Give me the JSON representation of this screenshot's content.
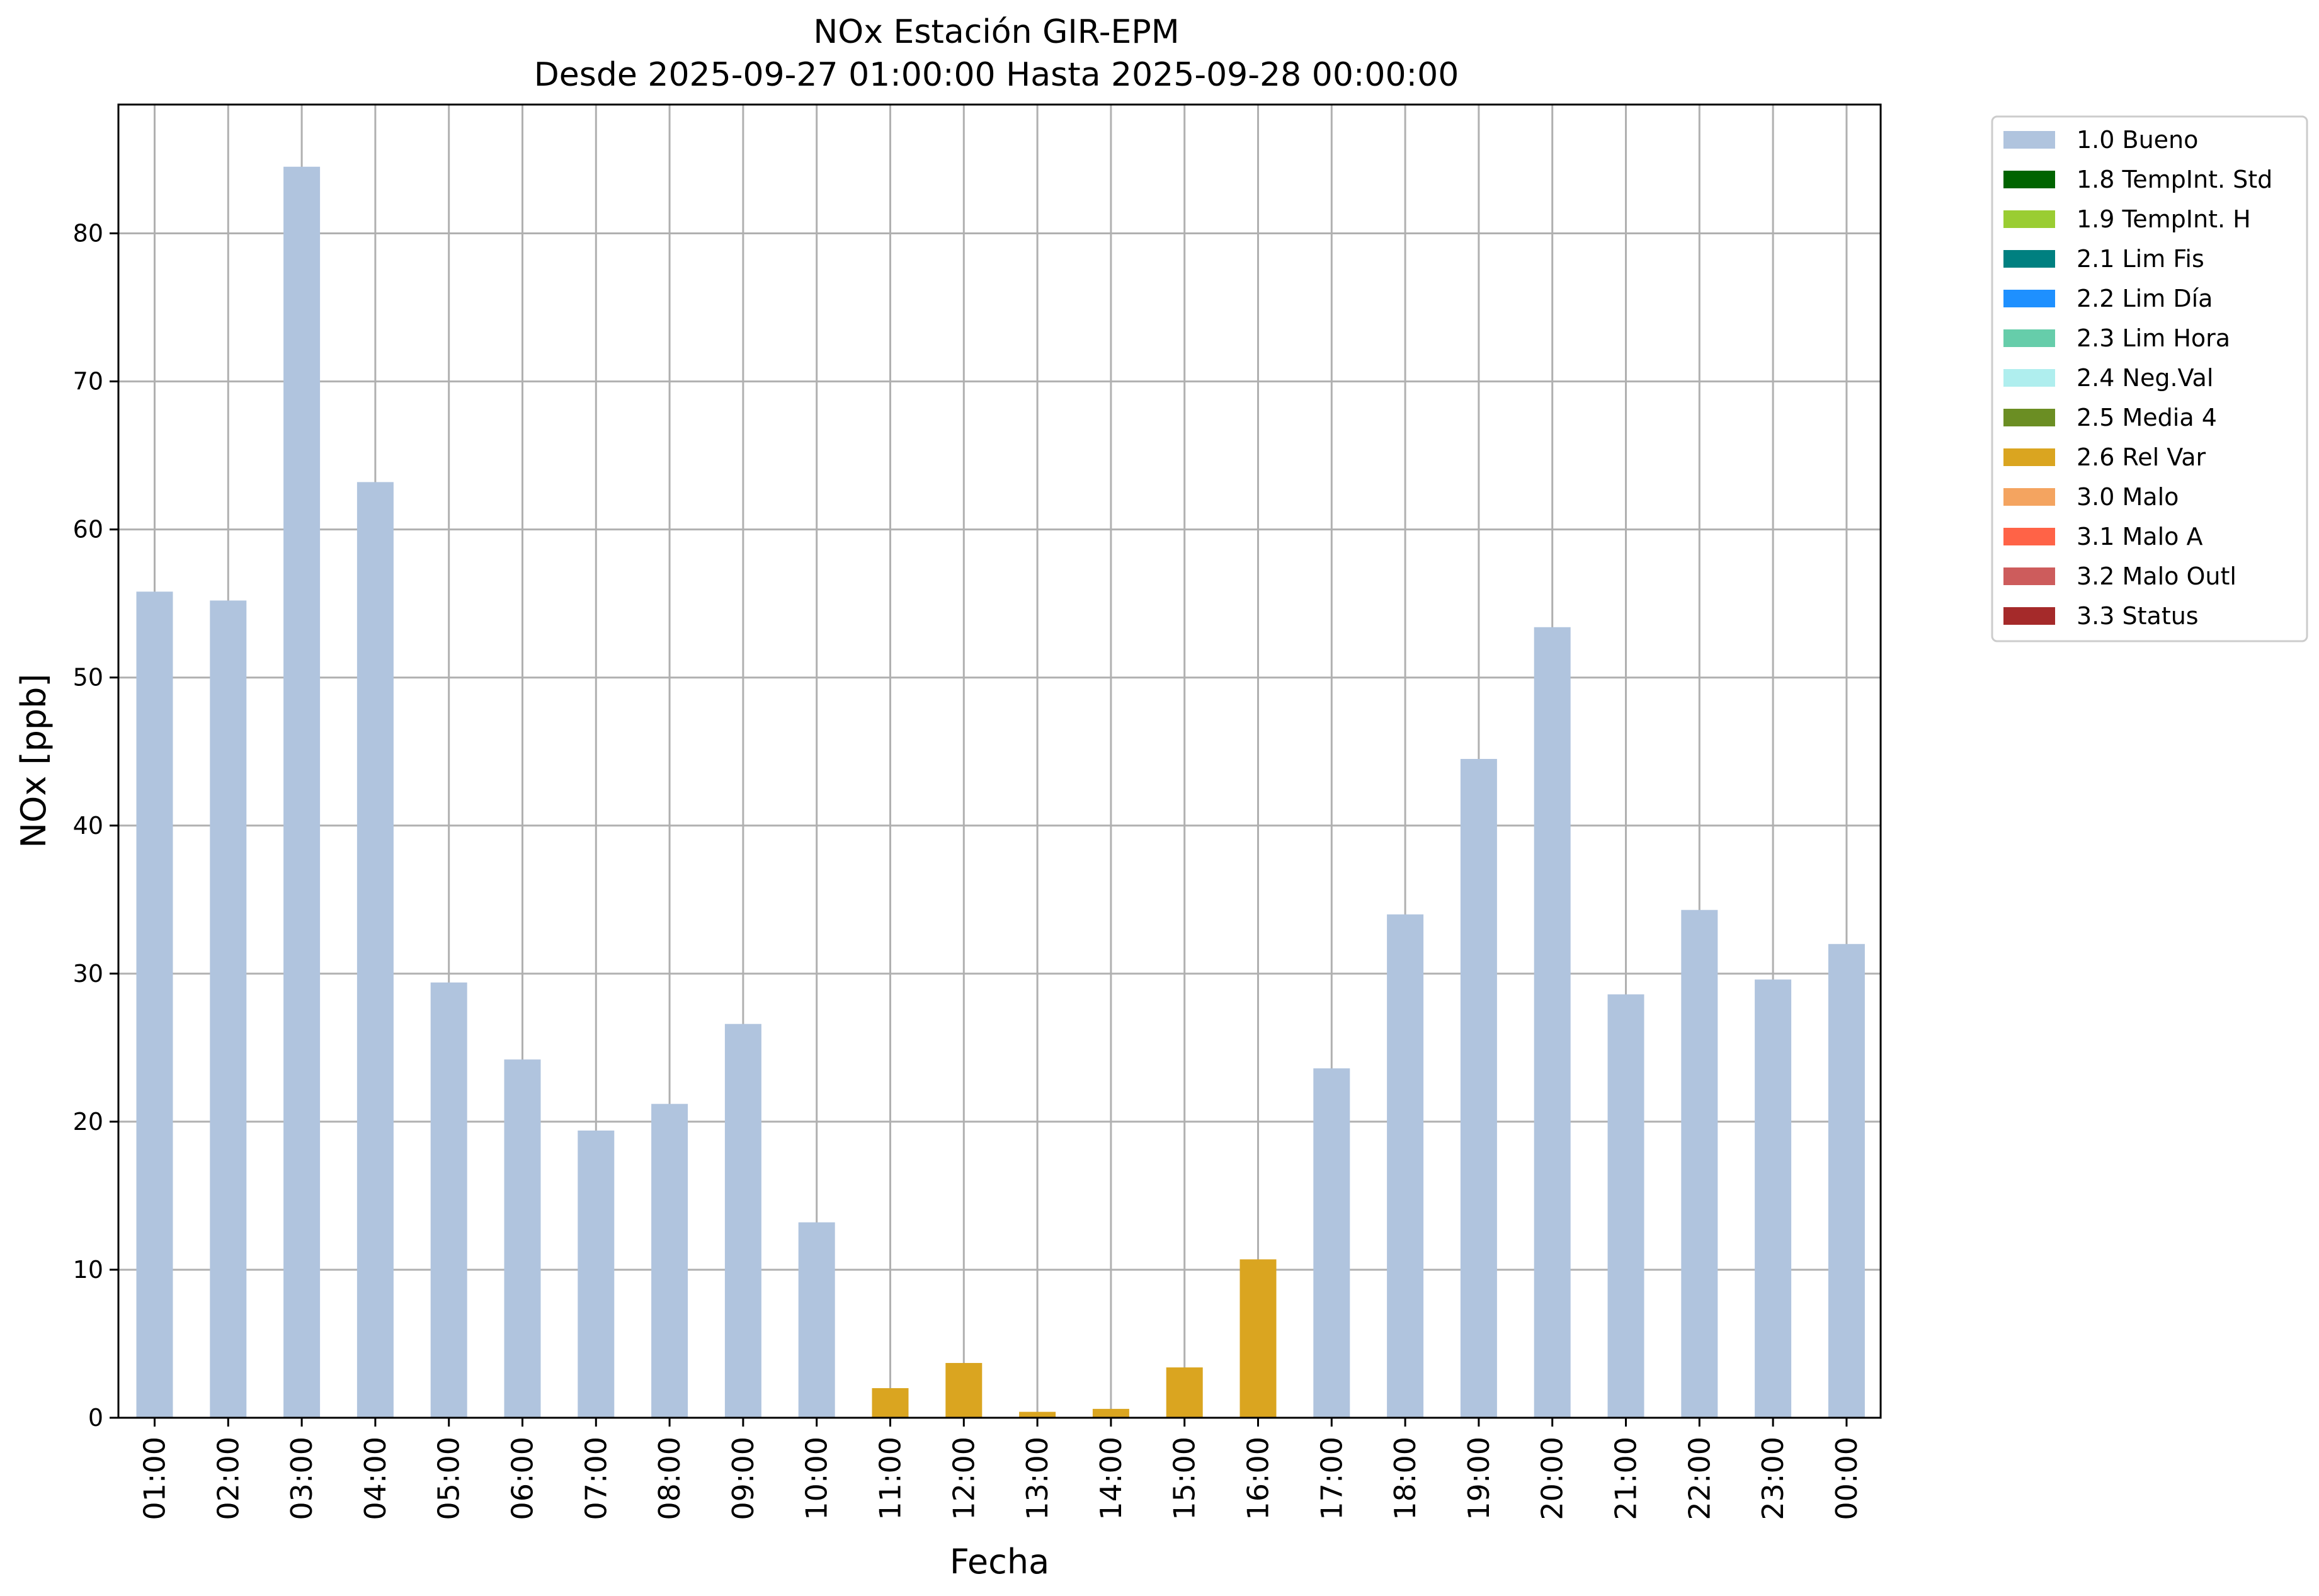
{
  "chart_data": {
    "type": "bar",
    "title": "NOx Estación GIR-EPM",
    "subtitle": "Desde 2025-09-27 01:00:00 Hasta 2025-09-28 00:00:00",
    "xlabel": "Fecha",
    "ylabel": "NOx [ppb]",
    "ylim": [
      0,
      88.7
    ],
    "yticks": [
      0,
      10,
      20,
      30,
      40,
      50,
      60,
      70,
      80
    ],
    "grid": true,
    "legend_position": "outside-top-right",
    "categories": [
      "01:00",
      "02:00",
      "03:00",
      "04:00",
      "05:00",
      "06:00",
      "07:00",
      "08:00",
      "09:00",
      "10:00",
      "11:00",
      "12:00",
      "13:00",
      "14:00",
      "15:00",
      "16:00",
      "17:00",
      "18:00",
      "19:00",
      "20:00",
      "21:00",
      "22:00",
      "23:00",
      "00:00"
    ],
    "values": [
      55.8,
      55.2,
      84.5,
      63.2,
      29.4,
      24.2,
      19.4,
      21.2,
      26.6,
      13.2,
      2.0,
      3.7,
      0.4,
      0.6,
      3.4,
      10.7,
      23.6,
      34.0,
      44.5,
      53.4,
      28.6,
      34.3,
      29.6,
      32.0
    ],
    "flags": [
      "1.0 Bueno",
      "1.0 Bueno",
      "1.0 Bueno",
      "1.0 Bueno",
      "1.0 Bueno",
      "1.0 Bueno",
      "1.0 Bueno",
      "1.0 Bueno",
      "1.0 Bueno",
      "1.0 Bueno",
      "2.6 Rel Var",
      "2.6 Rel Var",
      "2.6 Rel Var",
      "2.6 Rel Var",
      "2.6 Rel Var",
      "2.6 Rel Var",
      "1.0 Bueno",
      "1.0 Bueno",
      "1.0 Bueno",
      "1.0 Bueno",
      "1.0 Bueno",
      "1.0 Bueno",
      "1.0 Bueno",
      "1.0 Bueno"
    ],
    "legend": [
      {
        "name": "1.0 Bueno",
        "color": "#b0c4de"
      },
      {
        "name": "1.8 TempInt. Std",
        "color": "#006400"
      },
      {
        "name": "1.9 TempInt. H",
        "color": "#9acd32"
      },
      {
        "name": "2.1 Lim Fis",
        "color": "#008080"
      },
      {
        "name": "2.2 Lim Día",
        "color": "#1e90ff"
      },
      {
        "name": "2.3 Lim Hora",
        "color": "#66cdaa"
      },
      {
        "name": "2.4 Neg.Val",
        "color": "#afeeee"
      },
      {
        "name": "2.5 Media 4",
        "color": "#6b8e23"
      },
      {
        "name": "2.6 Rel Var",
        "color": "#daa520"
      },
      {
        "name": "3.0 Malo",
        "color": "#f4a460"
      },
      {
        "name": "3.1 Malo A",
        "color": "#ff6347"
      },
      {
        "name": "3.2 Malo Outl",
        "color": "#cd5c5c"
      },
      {
        "name": "3.3 Status",
        "color": "#a52a2a"
      }
    ]
  }
}
